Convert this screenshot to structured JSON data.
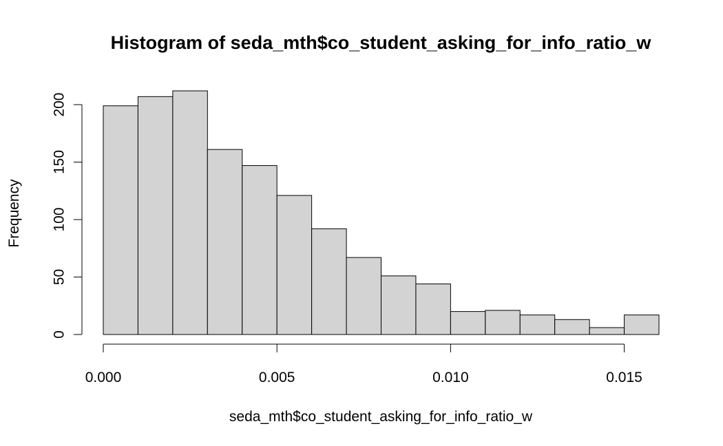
{
  "chart_data": {
    "type": "bar",
    "title": "Histogram of seda_mth$co_student_asking_for_info_ratio_w",
    "xlabel": "seda_mth$co_student_asking_for_info_ratio_w",
    "ylabel": "Frequency",
    "bin_edges": [
      0.0,
      0.001,
      0.002,
      0.003,
      0.004,
      0.005,
      0.006,
      0.007,
      0.008,
      0.009,
      0.01,
      0.011,
      0.012,
      0.013,
      0.014,
      0.015,
      0.016
    ],
    "values": [
      199,
      207,
      212,
      161,
      147,
      121,
      92,
      67,
      51,
      44,
      20,
      21,
      17,
      13,
      6,
      17
    ],
    "xlim": [
      0.0,
      0.016
    ],
    "ylim": [
      0,
      212
    ],
    "x_ticks": [
      0.0,
      0.005,
      0.01,
      0.015
    ],
    "x_tick_labels": [
      "0.000",
      "0.005",
      "0.010",
      "0.015"
    ],
    "y_ticks": [
      0,
      50,
      100,
      150,
      200
    ],
    "y_tick_labels": [
      "0",
      "50",
      "100",
      "150",
      "200"
    ],
    "grid": false,
    "bar_color": "#d3d3d3",
    "edge_color": "#000000"
  }
}
